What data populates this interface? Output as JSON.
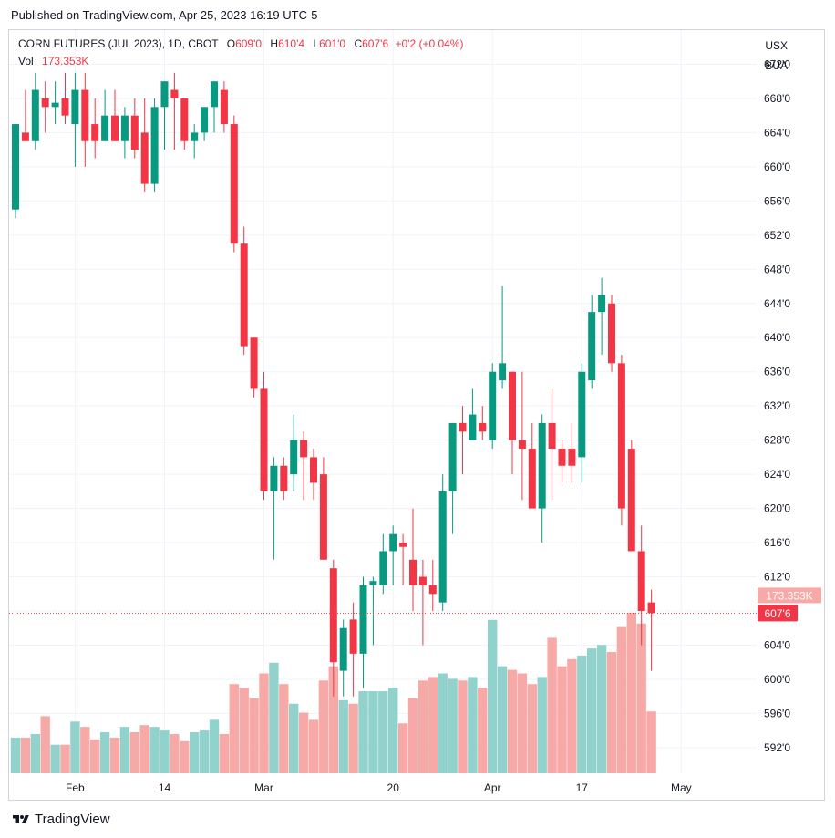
{
  "published": "Published on TradingView.com, Apr 25, 2023 16:19 UTC-5",
  "legend": {
    "symbol": "CORN FUTURES (JUL 2023), 1D, CBOT",
    "open_label": "O",
    "open": "609'0",
    "high_label": "H",
    "high": "610'4",
    "low_label": "L",
    "low": "601'0",
    "close_label": "C",
    "close": "607'6",
    "change": "+0'2 (+0.04%)",
    "vol_label": "Vol",
    "vol": "173.353K"
  },
  "currency": [
    "USX",
    "BUA"
  ],
  "footer": {
    "brand": "TradingView"
  },
  "colors": {
    "up": "#089981",
    "down": "#f23645",
    "up_vol": "#92d2cc",
    "down_vol": "#f7a9a7",
    "grid": "#f0f3fa",
    "axis_text": "#131722"
  },
  "chart_data": {
    "type": "candlestick",
    "ylim": [
      589,
      676
    ],
    "y_ticks": [
      592,
      596,
      600,
      604,
      608,
      612,
      616,
      620,
      624,
      628,
      632,
      636,
      640,
      644,
      648,
      652,
      656,
      660,
      664,
      668,
      672
    ],
    "y_tick_labels": [
      "592'0",
      "596'0",
      "600'0",
      "604'0",
      "608'0",
      "612'0",
      "616'0",
      "620'0",
      "624'0",
      "628'0",
      "632'0",
      "636'0",
      "640'0",
      "644'0",
      "648'0",
      "652'0",
      "656'0",
      "660'0",
      "664'0",
      "668'0",
      "672'0"
    ],
    "x_labels": [
      {
        "index": 6,
        "label": "Feb"
      },
      {
        "index": 15,
        "label": "14"
      },
      {
        "index": 25,
        "label": "Mar"
      },
      {
        "index": 38,
        "label": "20"
      },
      {
        "index": 48,
        "label": "Apr"
      },
      {
        "index": 57,
        "label": "17"
      },
      {
        "index": 67,
        "label": "May"
      }
    ],
    "last_volume_label": "173.353K",
    "last_price_label": "607'6",
    "last_price": 607.75,
    "candles": [
      {
        "o": 655,
        "h": 665,
        "l": 654,
        "c": 665,
        "v": 100
      },
      {
        "o": 664,
        "h": 669,
        "l": 663,
        "c": 663,
        "v": 100
      },
      {
        "o": 663,
        "h": 671,
        "l": 662,
        "c": 669,
        "v": 110
      },
      {
        "o": 668,
        "h": 670,
        "l": 664,
        "c": 667,
        "v": 160
      },
      {
        "o": 667,
        "h": 670,
        "l": 665,
        "c": 667.5,
        "v": 80
      },
      {
        "o": 668,
        "h": 671,
        "l": 665,
        "c": 666,
        "v": 80
      },
      {
        "o": 665,
        "h": 671,
        "l": 660,
        "c": 669,
        "v": 145
      },
      {
        "o": 669,
        "h": 671,
        "l": 660,
        "c": 663,
        "v": 130
      },
      {
        "o": 665,
        "h": 668,
        "l": 661,
        "c": 663,
        "v": 95
      },
      {
        "o": 663,
        "h": 669,
        "l": 663,
        "c": 666,
        "v": 115
      },
      {
        "o": 666,
        "h": 669,
        "l": 663,
        "c": 663,
        "v": 100
      },
      {
        "o": 663,
        "h": 667,
        "l": 661,
        "c": 666,
        "v": 130
      },
      {
        "o": 666,
        "h": 668,
        "l": 661,
        "c": 662,
        "v": 115
      },
      {
        "o": 664,
        "h": 668,
        "l": 657,
        "c": 658,
        "v": 135
      },
      {
        "o": 658,
        "h": 668,
        "l": 657,
        "c": 667,
        "v": 130
      },
      {
        "o": 667,
        "h": 670,
        "l": 662,
        "c": 670,
        "v": 120
      },
      {
        "o": 669,
        "h": 671,
        "l": 662,
        "c": 668,
        "v": 110
      },
      {
        "o": 668,
        "h": 668,
        "l": 662,
        "c": 663,
        "v": 90
      },
      {
        "o": 663,
        "h": 665,
        "l": 661,
        "c": 664,
        "v": 115
      },
      {
        "o": 664,
        "h": 667,
        "l": 663,
        "c": 667,
        "v": 120
      },
      {
        "o": 667,
        "h": 670,
        "l": 664,
        "c": 670,
        "v": 150
      },
      {
        "o": 669,
        "h": 670,
        "l": 664,
        "c": 665,
        "v": 110
      },
      {
        "o": 665,
        "h": 666,
        "l": 650,
        "c": 651,
        "v": 250
      },
      {
        "o": 651,
        "h": 653,
        "l": 638,
        "c": 639,
        "v": 240
      },
      {
        "o": 640,
        "h": 640,
        "l": 633,
        "c": 634,
        "v": 210
      },
      {
        "o": 634,
        "h": 636,
        "l": 621,
        "c": 622,
        "v": 280
      },
      {
        "o": 622,
        "h": 626,
        "l": 614,
        "c": 625,
        "v": 310
      },
      {
        "o": 625,
        "h": 626,
        "l": 621,
        "c": 622,
        "v": 250
      },
      {
        "o": 624,
        "h": 631,
        "l": 622,
        "c": 628,
        "v": 195
      },
      {
        "o": 628,
        "h": 629,
        "l": 621,
        "c": 626,
        "v": 170
      },
      {
        "o": 626,
        "h": 627,
        "l": 621,
        "c": 623,
        "v": 150
      },
      {
        "o": 624,
        "h": 626,
        "l": 614,
        "c": 614,
        "v": 260
      },
      {
        "o": 613,
        "h": 614,
        "l": 598,
        "c": 602,
        "v": 300
      },
      {
        "o": 601,
        "h": 607,
        "l": 598,
        "c": 606,
        "v": 205
      },
      {
        "o": 607,
        "h": 609,
        "l": 598,
        "c": 603,
        "v": 195
      },
      {
        "o": 603,
        "h": 612,
        "l": 599,
        "c": 611,
        "v": 230
      },
      {
        "o": 611,
        "h": 612,
        "l": 604,
        "c": 611.5,
        "v": 230
      },
      {
        "o": 611,
        "h": 617,
        "l": 610,
        "c": 615,
        "v": 230
      },
      {
        "o": 615,
        "h": 618,
        "l": 611,
        "c": 617,
        "v": 240
      },
      {
        "o": 616,
        "h": 617,
        "l": 611,
        "c": 615.5,
        "v": 140
      },
      {
        "o": 614,
        "h": 620,
        "l": 608,
        "c": 611,
        "v": 210
      },
      {
        "o": 612,
        "h": 614,
        "l": 604,
        "c": 611,
        "v": 260
      },
      {
        "o": 611,
        "h": 614,
        "l": 608,
        "c": 610,
        "v": 270
      },
      {
        "o": 609,
        "h": 624,
        "l": 608,
        "c": 622,
        "v": 280
      },
      {
        "o": 622,
        "h": 630,
        "l": 617,
        "c": 630,
        "v": 265
      },
      {
        "o": 630,
        "h": 632,
        "l": 624,
        "c": 629,
        "v": 260
      },
      {
        "o": 628,
        "h": 634,
        "l": 628,
        "c": 631,
        "v": 270
      },
      {
        "o": 630,
        "h": 632,
        "l": 628,
        "c": 629,
        "v": 240
      },
      {
        "o": 628,
        "h": 637,
        "l": 627,
        "c": 636,
        "v": 430
      },
      {
        "o": 635,
        "h": 646,
        "l": 634,
        "c": 637,
        "v": 300
      },
      {
        "o": 636,
        "h": 636,
        "l": 624,
        "c": 628,
        "v": 290
      },
      {
        "o": 628,
        "h": 636,
        "l": 621,
        "c": 627,
        "v": 280
      },
      {
        "o": 627,
        "h": 630,
        "l": 620,
        "c": 620,
        "v": 250
      },
      {
        "o": 620,
        "h": 631,
        "l": 616,
        "c": 630,
        "v": 270
      },
      {
        "o": 630,
        "h": 634,
        "l": 621,
        "c": 627,
        "v": 380
      },
      {
        "o": 627,
        "h": 628,
        "l": 623,
        "c": 625,
        "v": 300
      },
      {
        "o": 627,
        "h": 630,
        "l": 623,
        "c": 625,
        "v": 320
      },
      {
        "o": 626,
        "h": 637,
        "l": 623,
        "c": 636,
        "v": 330
      },
      {
        "o": 635,
        "h": 645,
        "l": 634,
        "c": 643,
        "v": 350
      },
      {
        "o": 643,
        "h": 647,
        "l": 638,
        "c": 645,
        "v": 360
      },
      {
        "o": 644,
        "h": 645,
        "l": 636,
        "c": 637,
        "v": 340
      },
      {
        "o": 637,
        "h": 638,
        "l": 618,
        "c": 620,
        "v": 410
      },
      {
        "o": 627,
        "h": 628,
        "l": 615,
        "c": 615,
        "v": 450
      },
      {
        "o": 615,
        "h": 618,
        "l": 604,
        "c": 608,
        "v": 420
      },
      {
        "o": 609,
        "h": 610.5,
        "l": 601,
        "c": 607.75,
        "v": 173.353
      }
    ]
  }
}
